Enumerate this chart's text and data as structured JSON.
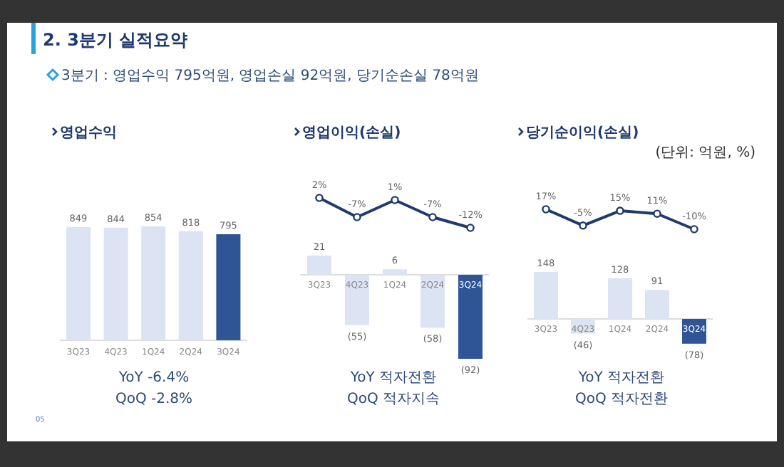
{
  "chart_data": [
    {
      "type": "bar",
      "title": "영업수익",
      "categories": [
        "3Q23",
        "4Q23",
        "1Q24",
        "2Q24",
        "3Q24"
      ],
      "series": [
        {
          "colors": [
            "#dce3f3",
            "#dce3f3",
            "#dce3f3",
            "#dce3f3",
            "#2f5597"
          ],
          "values": [
            849,
            844,
            854,
            818,
            795
          ],
          "value_labels": [
            "849",
            "844",
            "854",
            "818",
            "795"
          ]
        }
      ],
      "annotations": [
        "2. 3분기 실적요약",
        "3분기 : 영업수익 795억원, 영업손실 92억원, 당기순손실 78억원",
        "YoY  -6.4%",
        "QoQ  -2.8%",
        "05"
      ]
    },
    {
      "type": "line",
      "title": "영업이익(손실)",
      "categories": [
        null,
        null,
        null,
        null,
        null
      ],
      "marker": "circle",
      "series": [
        {
          "color": "#1f3a6e",
          "values": [
            2,
            -7,
            1,
            -7,
            -12
          ],
          "value_labels": [
            "2%",
            "-7%",
            "1%",
            "-7%",
            "-12%"
          ]
        }
      ]
    },
    {
      "type": "bar",
      "categories": [
        "3Q23",
        "4Q23",
        "1Q24",
        "2Q24",
        "3Q24"
      ],
      "series": [
        {
          "colors": [
            "#dce3f3",
            "#dce3f3",
            "#dce3f3",
            "#dce3f3",
            "#2f5597"
          ],
          "values": [
            21,
            -55,
            6,
            -58,
            -92
          ],
          "value_labels": [
            "21",
            "(55)",
            "6",
            "(58)",
            "(92)"
          ]
        }
      ],
      "annotations": [
        "YoY  적자전환",
        "QoQ  적자지속"
      ]
    },
    {
      "type": "line",
      "title": "당기순이익(손실)",
      "categories": [
        null,
        null,
        null,
        null,
        null
      ],
      "marker": "circle",
      "series": [
        {
          "color": "#1f3a6e",
          "values": [
            17,
            -5,
            15,
            11,
            -10
          ],
          "value_labels": [
            "17%",
            "-5%",
            "15%",
            "11%",
            "-10%"
          ]
        }
      ],
      "annotations": [
        "(단위: 억원, %)"
      ]
    },
    {
      "type": "bar",
      "categories": [
        "3Q23",
        "4Q23",
        "1Q24",
        "2Q24",
        "3Q24"
      ],
      "series": [
        {
          "colors": [
            "#dce3f3",
            "#dce3f3",
            "#dce3f3",
            "#dce3f3",
            "#2f5597"
          ],
          "values": [
            148,
            -46,
            128,
            91,
            -78
          ],
          "value_labels": [
            "148",
            "(46)",
            "128",
            "91",
            "(78)"
          ]
        }
      ],
      "annotations": [
        "YoY  적자전환",
        "QoQ  적자전환"
      ]
    }
  ]
}
